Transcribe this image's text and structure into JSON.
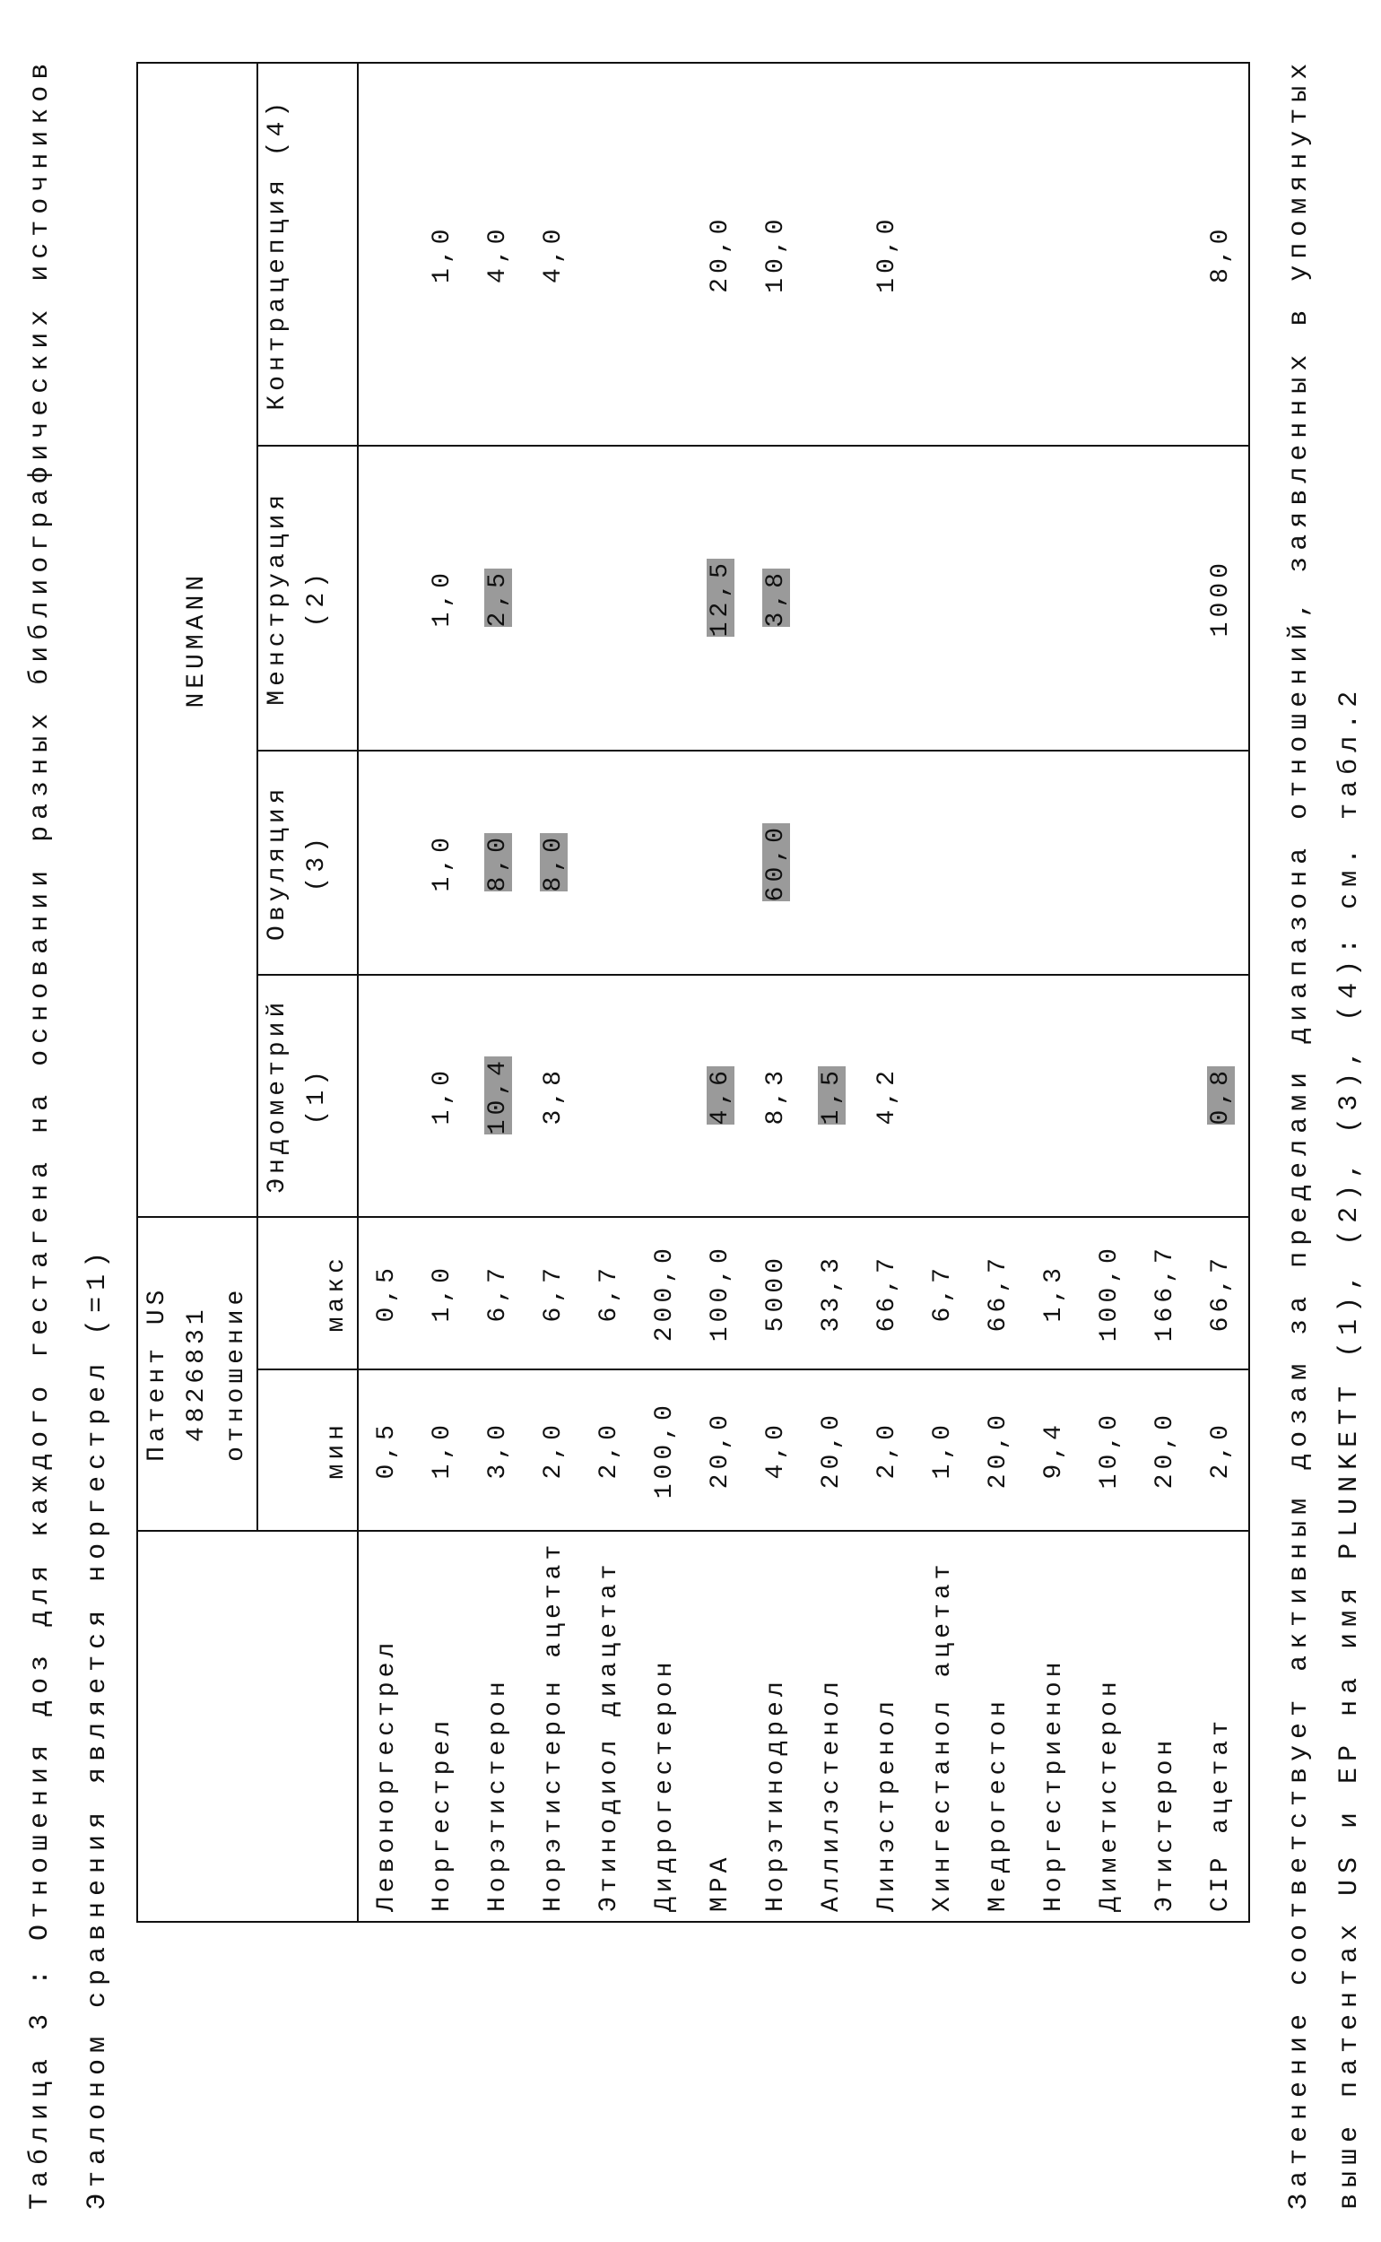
{
  "header": {
    "title": "Таблица 3 : Отношения доз для каждого гестагена на основании разных библиографических источников",
    "subtitle": "Эталоном сравнения является норгестрел (=1)"
  },
  "table": {
    "group_headers": [
      "Патент US 4826831 отношение",
      "NEUMANN"
    ],
    "columns": [
      "мин",
      "макс",
      "Эндометрий (1)",
      "Овуляция (3)",
      "Менструация (2)",
      "Контрацепция (4)"
    ],
    "rows": [
      [
        "Левоноргестрел",
        "0,5",
        "0,5",
        null,
        null,
        null,
        null
      ],
      [
        "Норгестрел",
        "1,0",
        "1,0",
        "1,0",
        "1,0",
        "1,0",
        "1,0"
      ],
      [
        "Норэтистерон",
        "3,0",
        "6,7",
        {
          "text": "10,4",
          "shaded": true
        },
        {
          "text": "8,0",
          "shaded": true
        },
        {
          "text": "2,5",
          "shaded": true
        },
        "4,0"
      ],
      [
        "Норэтистерон ацетат",
        "2,0",
        "6,7",
        "3,8",
        {
          "text": "8,0",
          "shaded": true
        },
        null,
        "4,0"
      ],
      [
        "Этинодиол диацетат",
        "2,0",
        "6,7",
        null,
        null,
        null,
        null
      ],
      [
        "Дидрогестерон",
        "100,0",
        "200,0",
        null,
        null,
        null,
        null
      ],
      [
        "MPA",
        "20,0",
        "100,0",
        {
          "text": "4,6",
          "shaded": true
        },
        null,
        {
          "text": "12,5",
          "shaded": true
        },
        "20,0"
      ],
      [
        "Норэтинодрел",
        "4,0",
        "5000",
        "8,3",
        {
          "text": "60,0",
          "shaded": true
        },
        {
          "text": "3,8",
          "shaded": true
        },
        "10,0"
      ],
      [
        "Аллилэстенол",
        "20,0",
        "33,3",
        {
          "text": "1,5",
          "shaded": true
        },
        null,
        null,
        null
      ],
      [
        "Линэстренол",
        "2,0",
        "66,7",
        "4,2",
        null,
        null,
        "10,0"
      ],
      [
        "Хингестанол ацетат",
        "1,0",
        "6,7",
        null,
        null,
        null,
        null
      ],
      [
        "Медрогестон",
        "20,0",
        "66,7",
        null,
        null,
        null,
        null
      ],
      [
        "Норгестриенон",
        "9,4",
        "1,3",
        null,
        null,
        null,
        null
      ],
      [
        "Диметистерон",
        "10,0",
        "100,0",
        null,
        null,
        null,
        null
      ],
      [
        "Этистерон",
        "20,0",
        "166,7",
        null,
        null,
        null,
        null
      ],
      [
        "CIP ацетат",
        "2,0",
        "66,7",
        {
          "text": "0,8",
          "shaded": true
        },
        null,
        "1000",
        "8,0"
      ]
    ]
  },
  "footnote": [
    "Затенение соответствует активным дозам за пределами диапазона отношений, заявленных в упомянутых",
    "выше патентах US и EP на имя PLUNKETT (1), (2), (3), (4): см. табл.2"
  ]
}
